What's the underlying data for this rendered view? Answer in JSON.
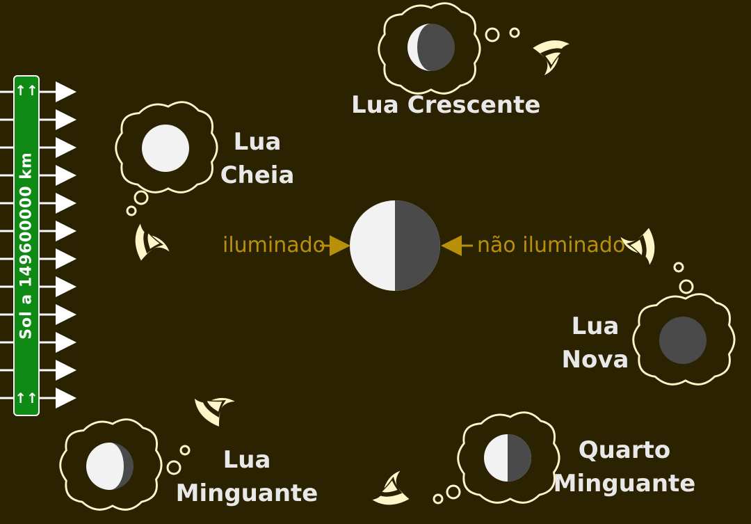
{
  "sign": {
    "text": "Sol a 149600000 km",
    "arrows_glyph": "↑↑"
  },
  "center": {
    "left_label": "iluminado",
    "right_label": "não iluminado",
    "lit_color": "#f2f2f2",
    "dark_color": "#4a4a4a",
    "annotation_color": "#b8900a"
  },
  "phases": [
    {
      "id": "lua-crescente",
      "label_lines": [
        "Lua Crescente"
      ],
      "illumination": "crescent-left"
    },
    {
      "id": "lua-cheia",
      "label_lines": [
        "Lua",
        "Cheia"
      ],
      "illumination": "full"
    },
    {
      "id": "lua-nova",
      "label_lines": [
        "Lua",
        "Nova"
      ],
      "illumination": "new"
    },
    {
      "id": "quarto-minguante",
      "label_lines": [
        "Quarto",
        "Minguante"
      ],
      "illumination": "half-left"
    },
    {
      "id": "lua-minguante",
      "label_lines": [
        "Lua",
        "Minguante"
      ],
      "illumination": "gibbous-left"
    }
  ],
  "colors": {
    "background": "#2a2200",
    "cloud_stroke": "#fff5c8",
    "sign_green": "#0e8a15",
    "eye_fill": "#fff5c8",
    "sun_ray": "#ffffff"
  },
  "icons": {
    "eye": "eye-icon",
    "cloud": "thought-cloud-icon",
    "sun_ray": "arrow-right-icon"
  }
}
